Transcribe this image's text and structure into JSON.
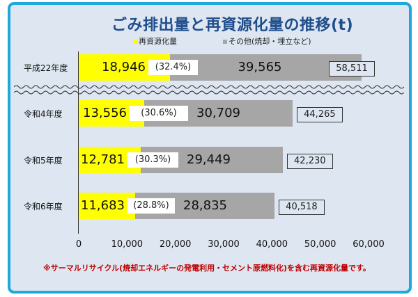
{
  "chart_data": {
    "type": "bar",
    "stacked": true,
    "orientation": "horizontal",
    "title": "ごみ排出量と再資源化量の推移(t)",
    "categories": [
      "平成22年度",
      "令和4年度",
      "令和5年度",
      "令和6年度"
    ],
    "series": [
      {
        "name": "再資源化量",
        "color": "#ffff00",
        "values": [
          18946,
          13556,
          12781,
          11683
        ],
        "labels": [
          "18,946",
          "13,556",
          "12,781",
          "11,683"
        ]
      },
      {
        "name": "その他(焼却・埋立など)",
        "color": "#a6a6a6",
        "values": [
          39565,
          30709,
          29449,
          28835
        ],
        "labels": [
          "39,565",
          "30,709",
          "29,449",
          "28,835"
        ]
      }
    ],
    "percent_labels": [
      "(32.4%)",
      "(30.6%)",
      "(30.3%)",
      "(28.8%)"
    ],
    "total_labels": [
      "58,511",
      "44,265",
      "42,230",
      "40,518"
    ],
    "xlim": [
      0,
      60000
    ],
    "xticks": [
      "0",
      "10,000",
      "20,000",
      "30,000",
      "40,000",
      "50,000",
      "60,000"
    ],
    "axis_break": "between 平成22年度 and 令和4年度",
    "grid": false,
    "legend_placement": "top",
    "footnote": "※サーマルリサイクル(焼却エネルギーの発電利用・セメント原燃料化)を含む再資源化量です。"
  }
}
